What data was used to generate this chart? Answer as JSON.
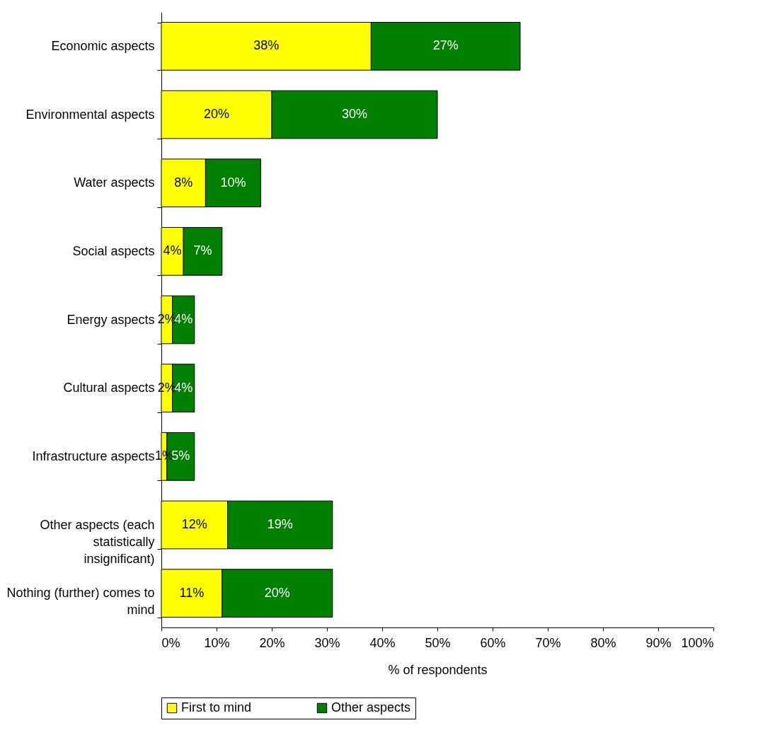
{
  "chart_data": {
    "type": "bar",
    "orientation": "horizontal",
    "stacked": true,
    "categories": [
      "Economic aspects",
      "Environmental aspects",
      "Water aspects",
      "Social aspects",
      "Energy aspects",
      "Cultural aspects",
      "Infrastructure aspects",
      "Other aspects (each statistically insignificant)",
      "Nothing (further) comes to mind"
    ],
    "series": [
      {
        "name": "First to mind",
        "color": "#ffff00",
        "values": [
          38,
          20,
          8,
          4,
          2,
          2,
          1,
          12,
          11
        ],
        "value_labels": [
          "38%",
          "20%",
          "8%",
          "4%",
          "2%",
          "2%",
          "1%",
          "12%",
          "11%"
        ]
      },
      {
        "name": "Other aspects",
        "color": "#008000",
        "values": [
          27,
          30,
          10,
          7,
          4,
          4,
          5,
          19,
          20
        ],
        "value_labels": [
          "27%",
          "30%",
          "10%",
          "7%",
          "4%",
          "4%",
          "5%",
          "19%",
          "20%"
        ]
      }
    ],
    "xlabel": "% of respondents",
    "xlim": [
      0,
      100
    ],
    "xticks": [
      {
        "value": 0,
        "label": "0%"
      },
      {
        "value": 10,
        "label": "10%"
      },
      {
        "value": 20,
        "label": "20%"
      },
      {
        "value": 30,
        "label": "30%"
      },
      {
        "value": 40,
        "label": "40%"
      },
      {
        "value": 50,
        "label": "50%"
      },
      {
        "value": 60,
        "label": "60%"
      },
      {
        "value": 70,
        "label": "70%"
      },
      {
        "value": 80,
        "label": "80%"
      },
      {
        "value": 90,
        "label": "90%"
      },
      {
        "value": 100,
        "label": "100%"
      }
    ],
    "grid": false,
    "legend": "bottom"
  }
}
